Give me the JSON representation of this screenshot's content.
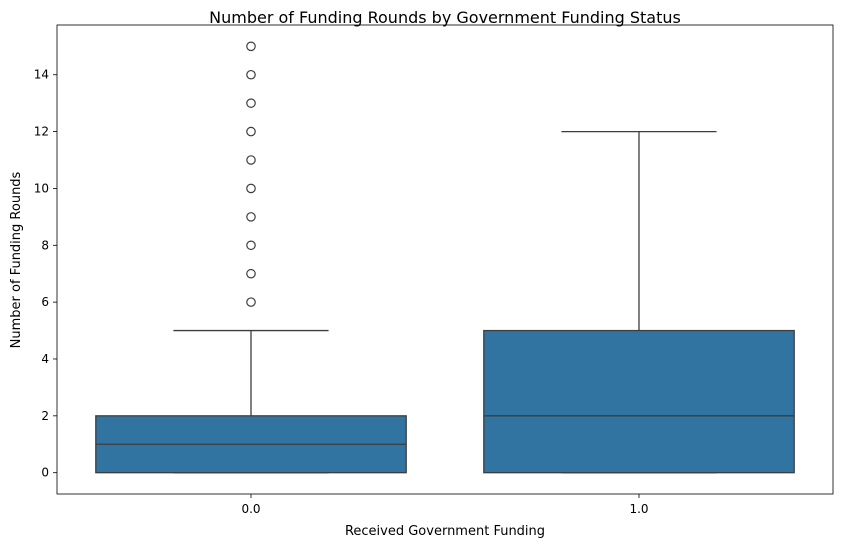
{
  "chart_data": {
    "type": "box",
    "title": "Number of Funding Rounds by Government Funding Status",
    "xlabel": "Received Government Funding",
    "ylabel": "Number of Funding Rounds",
    "categories": [
      "0.0",
      "1.0"
    ],
    "ylim": [
      -0.75,
      15.75
    ],
    "yticks": [
      0,
      2,
      4,
      6,
      8,
      10,
      12,
      14
    ],
    "yticklabels": [
      "0",
      "2",
      "4",
      "6",
      "8",
      "10",
      "12",
      "14"
    ],
    "grid": false,
    "box_color": "#3274a1",
    "line_color": "#3d3d3d",
    "boxes": [
      {
        "category": "0.0",
        "whisker_low": 0,
        "q1": 0,
        "median": 1,
        "q3": 2,
        "whisker_high": 5,
        "outliers": [
          6,
          7,
          8,
          9,
          10,
          11,
          12,
          13,
          14,
          15
        ]
      },
      {
        "category": "1.0",
        "whisker_low": 0,
        "q1": 0,
        "median": 2,
        "q3": 5,
        "whisker_high": 12,
        "outliers": []
      }
    ]
  }
}
